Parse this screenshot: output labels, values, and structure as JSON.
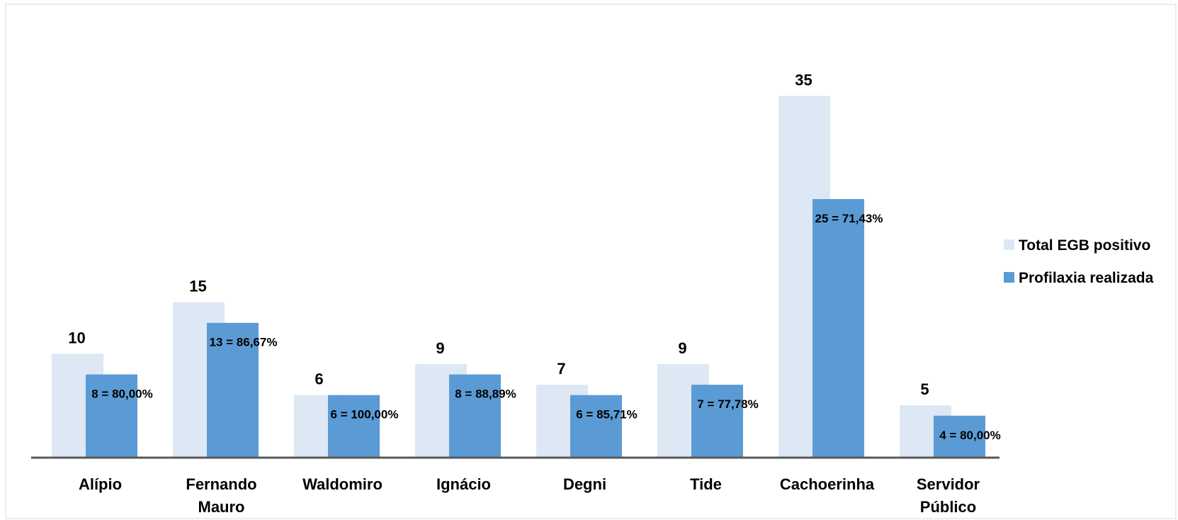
{
  "chart_data": {
    "type": "bar",
    "categories": [
      [
        "Alípio"
      ],
      [
        "Fernando",
        "Mauro"
      ],
      [
        "Waldomiro"
      ],
      [
        "Ignácio"
      ],
      [
        "Degni"
      ],
      [
        "Tide"
      ],
      [
        "Cachoerinha"
      ],
      [
        "Servidor",
        "Público"
      ]
    ],
    "series": [
      {
        "name": "Total EGB positivo",
        "color": "#dde8f4",
        "values": [
          10,
          15,
          6,
          9,
          7,
          9,
          35,
          5
        ],
        "labels": [
          "10",
          "15",
          "6",
          "9",
          "7",
          "9",
          "35",
          "5"
        ]
      },
      {
        "name": "Profilaxia realizada",
        "color": "#5b9bd5",
        "values": [
          8,
          13,
          6,
          8,
          6,
          7,
          25,
          4
        ],
        "labels": [
          "8 = 80,00%",
          "13 = 86,67%",
          "6 = 100,00%",
          "8 = 88,89%",
          "6 = 85,71%",
          "7 = 77,78%",
          "25 = 71,43%",
          "4 = 80,00%"
        ]
      }
    ],
    "ylim": [
      0,
      35
    ],
    "grid": false,
    "legend": "right"
  }
}
